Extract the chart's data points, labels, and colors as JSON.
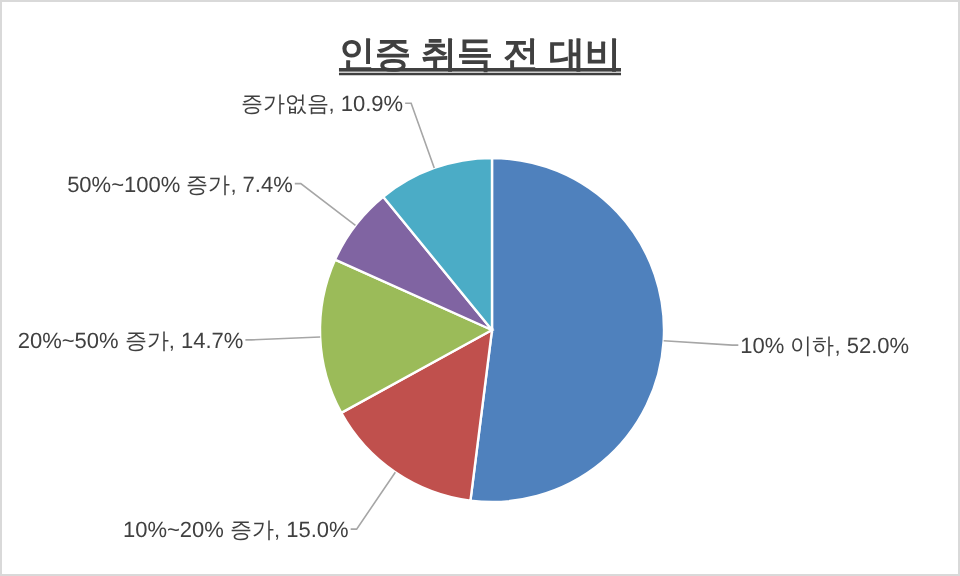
{
  "chart_data": {
    "type": "pie",
    "title": "인증 취득 전 대비",
    "categories": [
      "10% 이하",
      "10%~20% 증가",
      "20%~50% 증가",
      "50%~100% 증가",
      "증가없음"
    ],
    "values": [
      52.0,
      15.0,
      14.7,
      7.4,
      10.9
    ],
    "value_labels": [
      "52.0%",
      "15.0%",
      "14.7%",
      "7.4%",
      "10.9%"
    ],
    "colors": [
      "#4f81bd",
      "#c0504d",
      "#9bbb59",
      "#8064a2",
      "#4bacc6"
    ],
    "legend": false
  }
}
